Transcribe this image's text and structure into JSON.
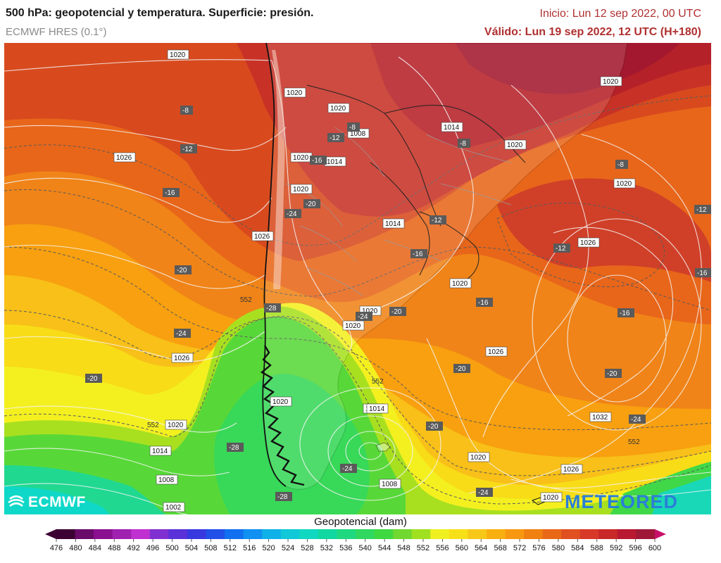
{
  "header": {
    "title": "500 hPa: geopotencial y temperatura. Superficie: presión.",
    "model": "ECMWF HRES (0.1°)",
    "init": "Inicio: Lun 12 sep 2022, 00 UTC",
    "valid": "Válido: Lun 19 sep 2022, 12 UTC (H+180)"
  },
  "logos": {
    "left": "ECMWF",
    "right": "METEORED"
  },
  "colorbar": {
    "title": "Geopotencial (dam)",
    "ticks": [
      "476",
      "480",
      "484",
      "488",
      "492",
      "496",
      "500",
      "504",
      "508",
      "512",
      "516",
      "520",
      "524",
      "528",
      "532",
      "536",
      "540",
      "544",
      "548",
      "552",
      "556",
      "560",
      "564",
      "568",
      "572",
      "576",
      "580",
      "584",
      "588",
      "592",
      "596",
      "600"
    ],
    "colors": [
      "#3d0033",
      "#6a0a6a",
      "#8a1090",
      "#a020b0",
      "#c030d0",
      "#8030d0",
      "#5a30d8",
      "#3838e0",
      "#2050e8",
      "#1070f0",
      "#1090f0",
      "#10b0e8",
      "#10c8d8",
      "#10d8c0",
      "#10d8a0",
      "#20d880",
      "#30d860",
      "#40d840",
      "#70d830",
      "#a0e020",
      "#f0f020",
      "#f8e018",
      "#f8c818",
      "#f8b010",
      "#f89810",
      "#f08010",
      "#e86818",
      "#e05020",
      "#d83828",
      "#c82828",
      "#b81830",
      "#a01838"
    ],
    "colors_note_ignore": ""
  },
  "isobars": [
    {
      "text": "1020",
      "k": "a"
    },
    {
      "text": "1020",
      "k": "b"
    },
    {
      "text": "1020",
      "k": "c"
    },
    {
      "text": "1008",
      "k": "d"
    },
    {
      "text": "1014",
      "k": "e"
    },
    {
      "text": "1020",
      "k": "f"
    },
    {
      "text": "1014",
      "k": "g"
    },
    {
      "text": "1020",
      "k": "h"
    },
    {
      "text": "1020",
      "k": "i"
    },
    {
      "text": "1026",
      "k": "j"
    },
    {
      "text": "1020",
      "k": "k"
    },
    {
      "text": "1026",
      "k": "l"
    },
    {
      "text": "1026",
      "k": "m"
    },
    {
      "text": "1014",
      "k": "n"
    },
    {
      "text": "1020",
      "k": "o"
    },
    {
      "text": "1020",
      "k": "p"
    },
    {
      "text": "1020",
      "k": "q"
    },
    {
      "text": "1026",
      "k": "r"
    },
    {
      "text": "1026",
      "k": "s"
    },
    {
      "text": "1020",
      "k": "t"
    },
    {
      "text": "1014",
      "k": "u"
    },
    {
      "text": "1020",
      "k": "v"
    },
    {
      "text": "1014",
      "k": "w"
    },
    {
      "text": "1008",
      "k": "x"
    },
    {
      "text": "1002",
      "k": "y"
    },
    {
      "text": "1008",
      "k": "z"
    },
    {
      "text": "1032",
      "k": "aa"
    },
    {
      "text": "1020",
      "k": "ab"
    },
    {
      "text": "1026",
      "k": "ac"
    },
    {
      "text": "1020",
      "k": "ad"
    },
    {
      "text": "1020",
      "k": "ae"
    },
    {
      "text": "1014",
      "k": "af"
    }
  ],
  "temps": [
    {
      "text": "-8",
      "k": "t1"
    },
    {
      "text": "-12",
      "k": "t2"
    },
    {
      "text": "-16",
      "k": "t3"
    },
    {
      "text": "-20",
      "k": "t4"
    },
    {
      "text": "-24",
      "k": "t5"
    },
    {
      "text": "-20",
      "k": "t6"
    },
    {
      "text": "-28",
      "k": "t7"
    },
    {
      "text": "-8",
      "k": "t8"
    },
    {
      "text": "-12",
      "k": "t9"
    },
    {
      "text": "-16",
      "k": "t10"
    },
    {
      "text": "-24",
      "k": "t11"
    },
    {
      "text": "-20",
      "k": "t12"
    },
    {
      "text": "-8",
      "k": "t13"
    },
    {
      "text": "-12",
      "k": "t14"
    },
    {
      "text": "-16",
      "k": "t15"
    },
    {
      "text": "-20",
      "k": "t16"
    },
    {
      "text": "-16",
      "k": "t17"
    },
    {
      "text": "-20",
      "k": "t18"
    },
    {
      "text": "-8",
      "k": "t19"
    },
    {
      "text": "-12",
      "k": "t20"
    },
    {
      "text": "-12",
      "k": "t21"
    },
    {
      "text": "-16",
      "k": "t22"
    },
    {
      "text": "-16",
      "k": "t23"
    },
    {
      "text": "-20",
      "k": "t24"
    },
    {
      "text": "-24",
      "k": "t25"
    },
    {
      "text": "-20",
      "k": "t26"
    },
    {
      "text": "-24",
      "k": "t27"
    },
    {
      "text": "-28",
      "k": "t28"
    },
    {
      "text": "-28",
      "k": "t29"
    },
    {
      "text": "-24",
      "k": "t30"
    },
    {
      "text": "-24",
      "k": "t31"
    }
  ],
  "contour_labels": [
    "552",
    "552",
    "552",
    "552"
  ]
}
